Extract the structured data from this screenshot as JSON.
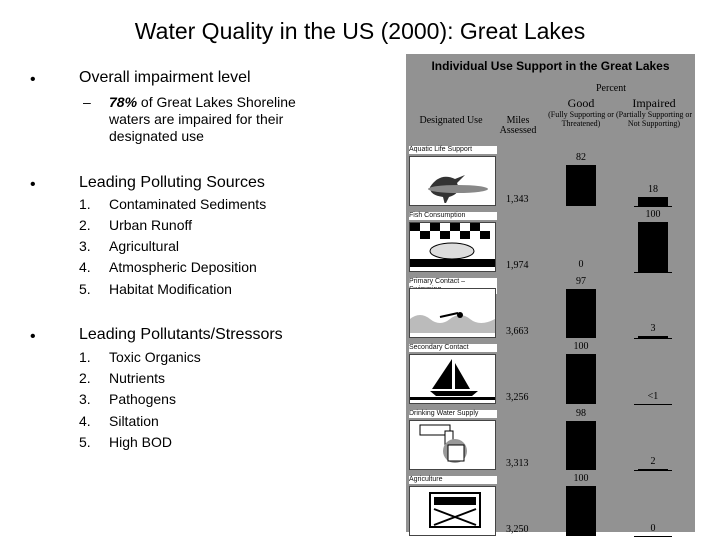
{
  "title": "Water Quality in the US (2000): Great Lakes",
  "bullets": {
    "b1_heading": "Overall impairment level",
    "b1_dash": "–",
    "b1_sub_bold": "78%",
    "b1_sub_rest": " of Great Lakes Shoreline waters are impaired for their designated use",
    "b2_heading": "Leading Polluting Sources",
    "b2_items": [
      "Contaminated Sediments",
      "Urban Runoff",
      "Agricultural",
      "Atmospheric Deposition",
      "Habitat Modification"
    ],
    "b3_heading": "Leading Pollutants/Stressors",
    "b3_items": [
      "Toxic Organics",
      "Nutrients",
      "Pathogens",
      "Siltation",
      "High BOD"
    ],
    "numbers": [
      "1.",
      "2.",
      "3.",
      "4.",
      "5."
    ],
    "bullet_char": "•"
  },
  "panel": {
    "title": "Individual Use Support in the Great Lakes",
    "percent": "Percent",
    "col_designated": "Designated Use",
    "col_miles": "Miles Assessed",
    "col_good": "Good",
    "col_good_sub": "(Fully Supporting or Threatened)",
    "col_impaired": "Impaired",
    "col_impaired_sub": "(Partially Supporting or Not Supporting)",
    "bar_color": "#000000",
    "panel_color": "#929292",
    "rows": [
      {
        "use": "Aquatic Life Support",
        "miles": "1,343",
        "good": 82,
        "good_label": "82",
        "impaired": 18,
        "impaired_label": "18",
        "icon": "heron-icon"
      },
      {
        "use": "Fish Consumption",
        "miles": "1,974",
        "good": 0,
        "good_label": "0",
        "impaired": 100,
        "impaired_label": "100",
        "icon": "fish-icon"
      },
      {
        "use": "Primary Contact – Swimming",
        "miles": "3,663",
        "good": 97,
        "good_label": "97",
        "impaired": 3,
        "impaired_label": "3",
        "icon": "swimmer-icon"
      },
      {
        "use": "Secondary Contact",
        "miles": "3,256",
        "good": 100,
        "good_label": "100",
        "impaired": 0.5,
        "impaired_label": "<1",
        "icon": "sailboat-icon"
      },
      {
        "use": "Drinking Water Supply",
        "miles": "3,313",
        "good": 98,
        "good_label": "98",
        "impaired": 2,
        "impaired_label": "2",
        "icon": "faucet-icon"
      },
      {
        "use": "Agriculture",
        "miles": "3,250",
        "good": 100,
        "good_label": "100",
        "impaired": 0,
        "impaired_label": "0",
        "icon": "crate-icon"
      }
    ]
  }
}
